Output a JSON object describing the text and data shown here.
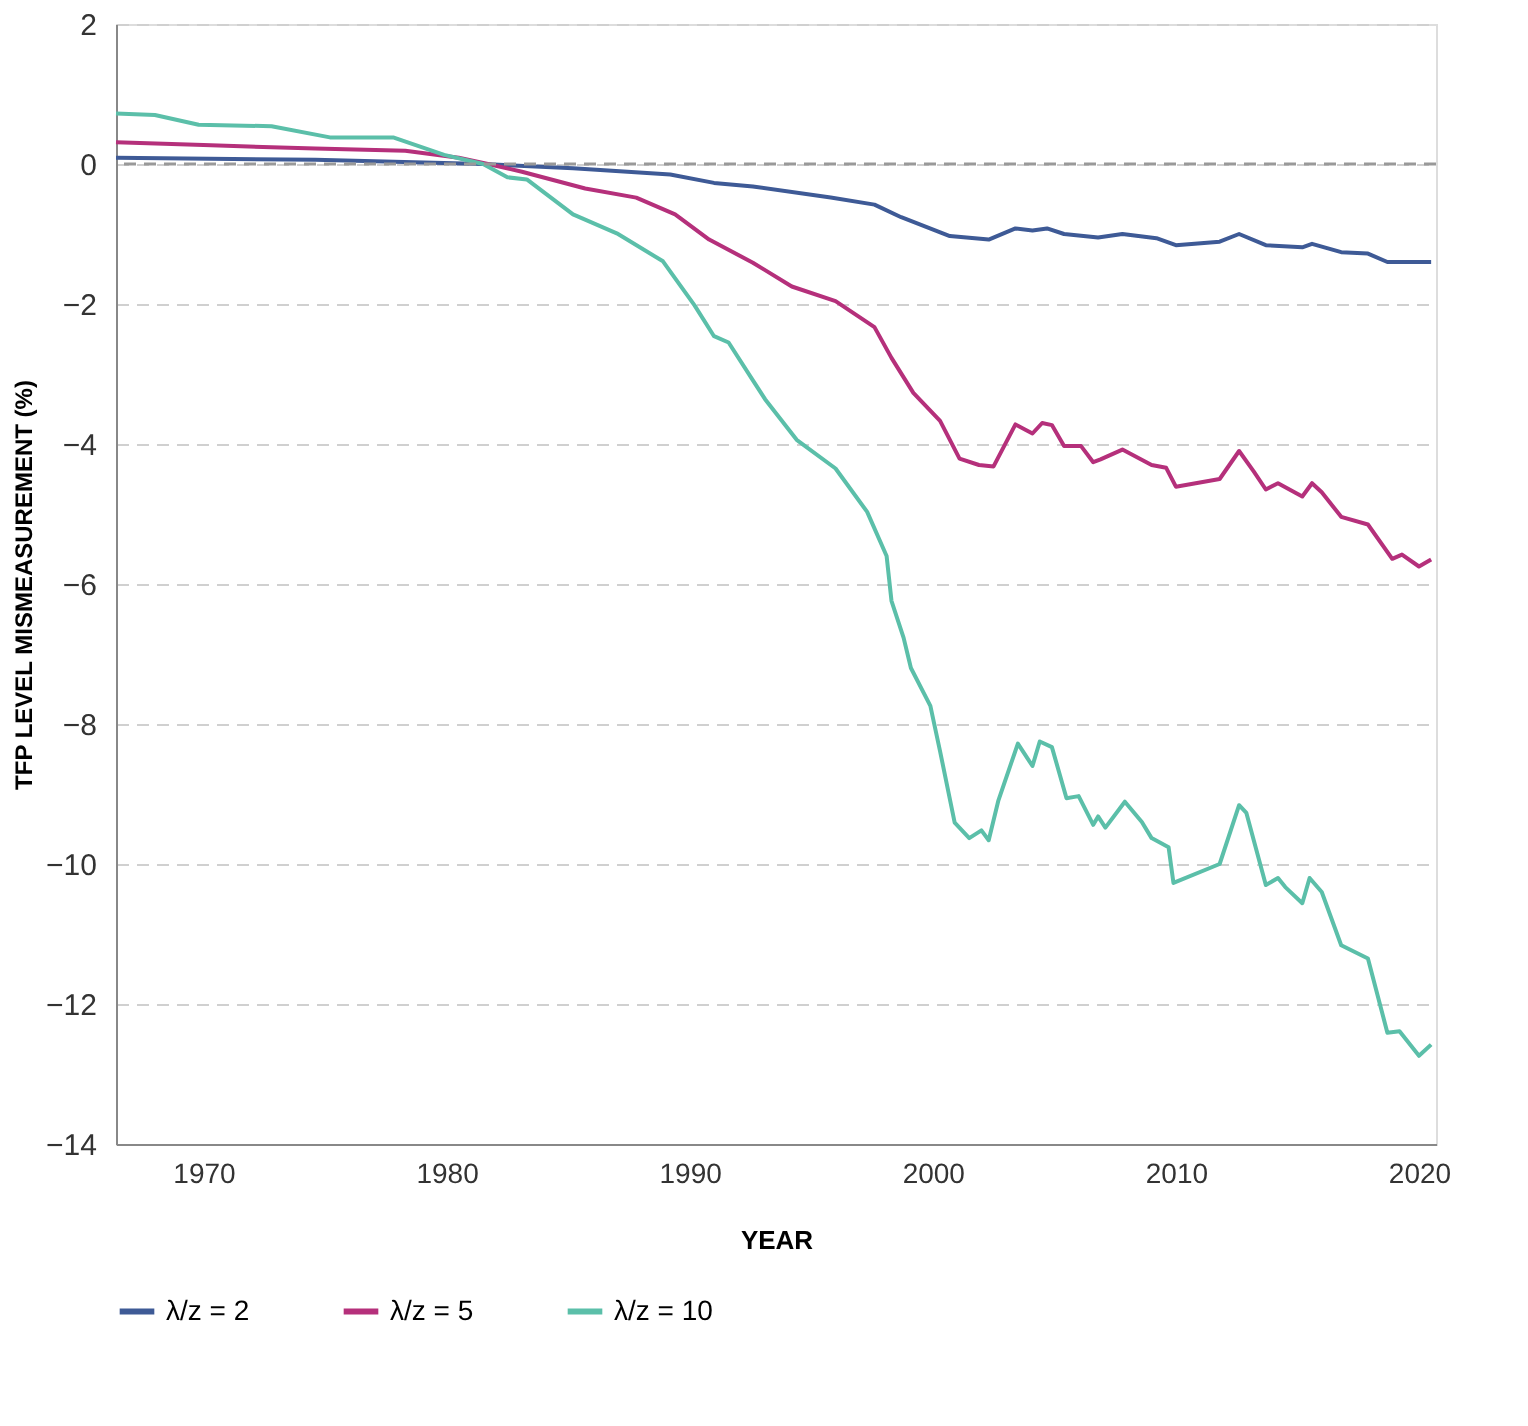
{
  "chart_data": {
    "type": "line",
    "xlabel": "YEAR",
    "ylabel": "TFP LEVEL MISMEASUREMENT (%)",
    "xlim": [
      1966.4,
      2020.7
    ],
    "xticks": [
      1970,
      1980,
      1990,
      2000,
      2010,
      2020
    ],
    "ylim": [
      -14,
      2
    ],
    "yticks": [
      -14,
      -12,
      -10,
      -8,
      -6,
      -4,
      -2,
      0,
      2
    ],
    "grid": "y",
    "legend": "bottom",
    "line_style": "solid",
    "marker": "none",
    "ref_lines": [
      {
        "axis": "y",
        "value": 0,
        "color": "#999999",
        "line_style": "dashed"
      }
    ],
    "series": [
      {
        "name": "λ/z = 2",
        "color": "#3e5a96",
        "x": [
          1966.4,
          1974.6,
          1981.5,
          1985.2,
          1989.2,
          1991.0,
          1992.6,
          1995.8,
          1997.6,
          1998.7,
          2000.7,
          2002.3,
          2003.4,
          2004.1,
          2004.7,
          2005.4,
          2006.8,
          2007.8,
          2009.2,
          2010.0,
          2011.8,
          2012.6,
          2013.7,
          2015.2,
          2015.6,
          2016.8,
          2017.9,
          2018.7,
          2019.5,
          2020.5
        ],
        "values": [
          0.09,
          0.06,
          0,
          -0.06,
          -0.15,
          -0.27,
          -0.32,
          -0.48,
          -0.58,
          -0.76,
          -1.03,
          -1.08,
          -0.92,
          -0.95,
          -0.92,
          -1.0,
          -1.05,
          -1.0,
          -1.06,
          -1.16,
          -1.11,
          -1.0,
          -1.16,
          -1.19,
          -1.14,
          -1.26,
          -1.28,
          -1.4,
          -1.4,
          -1.4
        ]
      },
      {
        "name": "λ/z = 5",
        "color": "#b5307b",
        "x": [
          1966.4,
          1970.0,
          1974.6,
          1978.3,
          1980.5,
          1981.7,
          1983.1,
          1985.7,
          1987.8,
          1989.4,
          1990.8,
          1992.6,
          1994.2,
          1996.0,
          1997.6,
          1998.3,
          1999.2,
          2000.3,
          2001.1,
          2001.9,
          2002.5,
          2003.4,
          2004.1,
          2004.5,
          2004.9,
          2005.4,
          2006.1,
          2006.6,
          2006.9,
          2007.8,
          2009.0,
          2009.6,
          2010.0,
          2011.8,
          2012.6,
          2013.2,
          2013.7,
          2014.2,
          2015.2,
          2015.6,
          2016.0,
          2016.8,
          2017.9,
          2018.9,
          2019.3,
          2020.0,
          2020.5
        ],
        "values": [
          0.31,
          0.27,
          0.22,
          0.19,
          0.09,
          0,
          -0.11,
          -0.35,
          -0.48,
          -0.72,
          -1.08,
          -1.41,
          -1.75,
          -1.96,
          -2.33,
          -2.77,
          -3.27,
          -3.67,
          -4.21,
          -4.3,
          -4.32,
          -3.72,
          -3.85,
          -3.7,
          -3.73,
          -4.03,
          -4.03,
          -4.26,
          -4.22,
          -4.08,
          -4.3,
          -4.34,
          -4.61,
          -4.5,
          -4.1,
          -4.39,
          -4.65,
          -4.56,
          -4.75,
          -4.56,
          -4.69,
          -5.04,
          -5.15,
          -5.64,
          -5.58,
          -5.75,
          -5.65
        ]
      },
      {
        "name": "λ/z = 10",
        "color": "#5bbfa9",
        "x": [
          1966.4,
          1968.0,
          1969.8,
          1972.8,
          1975.2,
          1977.8,
          1979.9,
          1981.5,
          1982.5,
          1983.3,
          1985.2,
          1987.0,
          1988.9,
          1990.2,
          1991.0,
          1991.6,
          1992.6,
          1993.1,
          1994.4,
          1996.0,
          1997.3,
          1998.1,
          1998.3,
          1998.8,
          1999.1,
          1999.9,
          2000.3,
          2000.9,
          2001.5,
          2002.0,
          2002.3,
          2002.7,
          2003.5,
          2004.1,
          2004.4,
          2004.9,
          2005.5,
          2006.0,
          2006.6,
          2006.8,
          2007.1,
          2007.9,
          2008.6,
          2009.0,
          2009.7,
          2009.9,
          2011.8,
          2012.6,
          2012.9,
          2013.7,
          2014.2,
          2014.5,
          2015.2,
          2015.5,
          2016.0,
          2016.8,
          2017.9,
          2018.7,
          2019.2,
          2020.0,
          2020.5
        ],
        "values": [
          0.72,
          0.7,
          0.56,
          0.54,
          0.38,
          0.38,
          0.13,
          0,
          -0.19,
          -0.22,
          -0.72,
          -0.99,
          -1.39,
          -2.02,
          -2.46,
          -2.55,
          -3.09,
          -3.36,
          -3.94,
          -4.35,
          -4.97,
          -5.6,
          -6.24,
          -6.77,
          -7.2,
          -7.74,
          -8.39,
          -9.41,
          -9.63,
          -9.52,
          -9.66,
          -9.09,
          -8.28,
          -8.6,
          -8.25,
          -8.33,
          -9.06,
          -9.03,
          -9.44,
          -9.32,
          -9.48,
          -9.11,
          -9.4,
          -9.63,
          -9.76,
          -10.27,
          -10.0,
          -9.16,
          -9.27,
          -10.3,
          -10.2,
          -10.33,
          -10.56,
          -10.2,
          -10.4,
          -11.16,
          -11.35,
          -12.41,
          -12.39,
          -12.74,
          -12.58
        ]
      }
    ]
  }
}
